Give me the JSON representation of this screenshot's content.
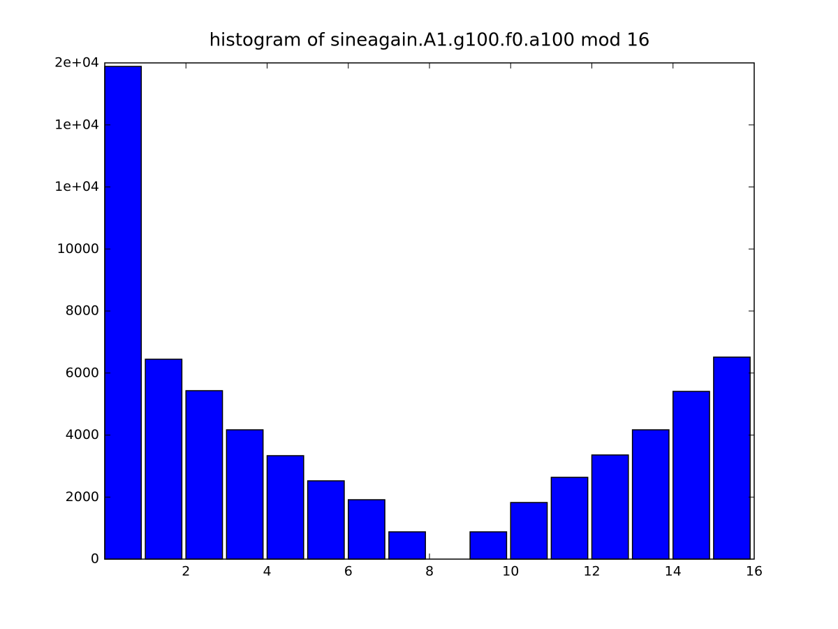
{
  "chart_data": {
    "type": "histogram",
    "title": "histogram of sineagain.A1.g100.f0.a100 mod 16",
    "bins": [
      0,
      1,
      2,
      3,
      4,
      5,
      6,
      7,
      8,
      9,
      10,
      11,
      12,
      13,
      14,
      15,
      16
    ],
    "values": [
      15887,
      6445,
      5431,
      4169,
      3335,
      2524,
      1915,
      879,
      0,
      879,
      1825,
      2637,
      3358,
      4169,
      5408,
      6513
    ],
    "color": "#0000ff",
    "xlim": [
      0,
      16
    ],
    "xticks": [
      2,
      4,
      6,
      8,
      10,
      12,
      14,
      16
    ],
    "ylim": [
      0,
      16000
    ],
    "yticks": [
      0,
      2000,
      4000,
      6000,
      8000,
      10000,
      {
        "value": 12000,
        "label": "1e+04"
      },
      {
        "value": 14000,
        "label": "1e+04"
      },
      {
        "value": 16000,
        "label": "2e+04"
      }
    ],
    "grid": false
  }
}
